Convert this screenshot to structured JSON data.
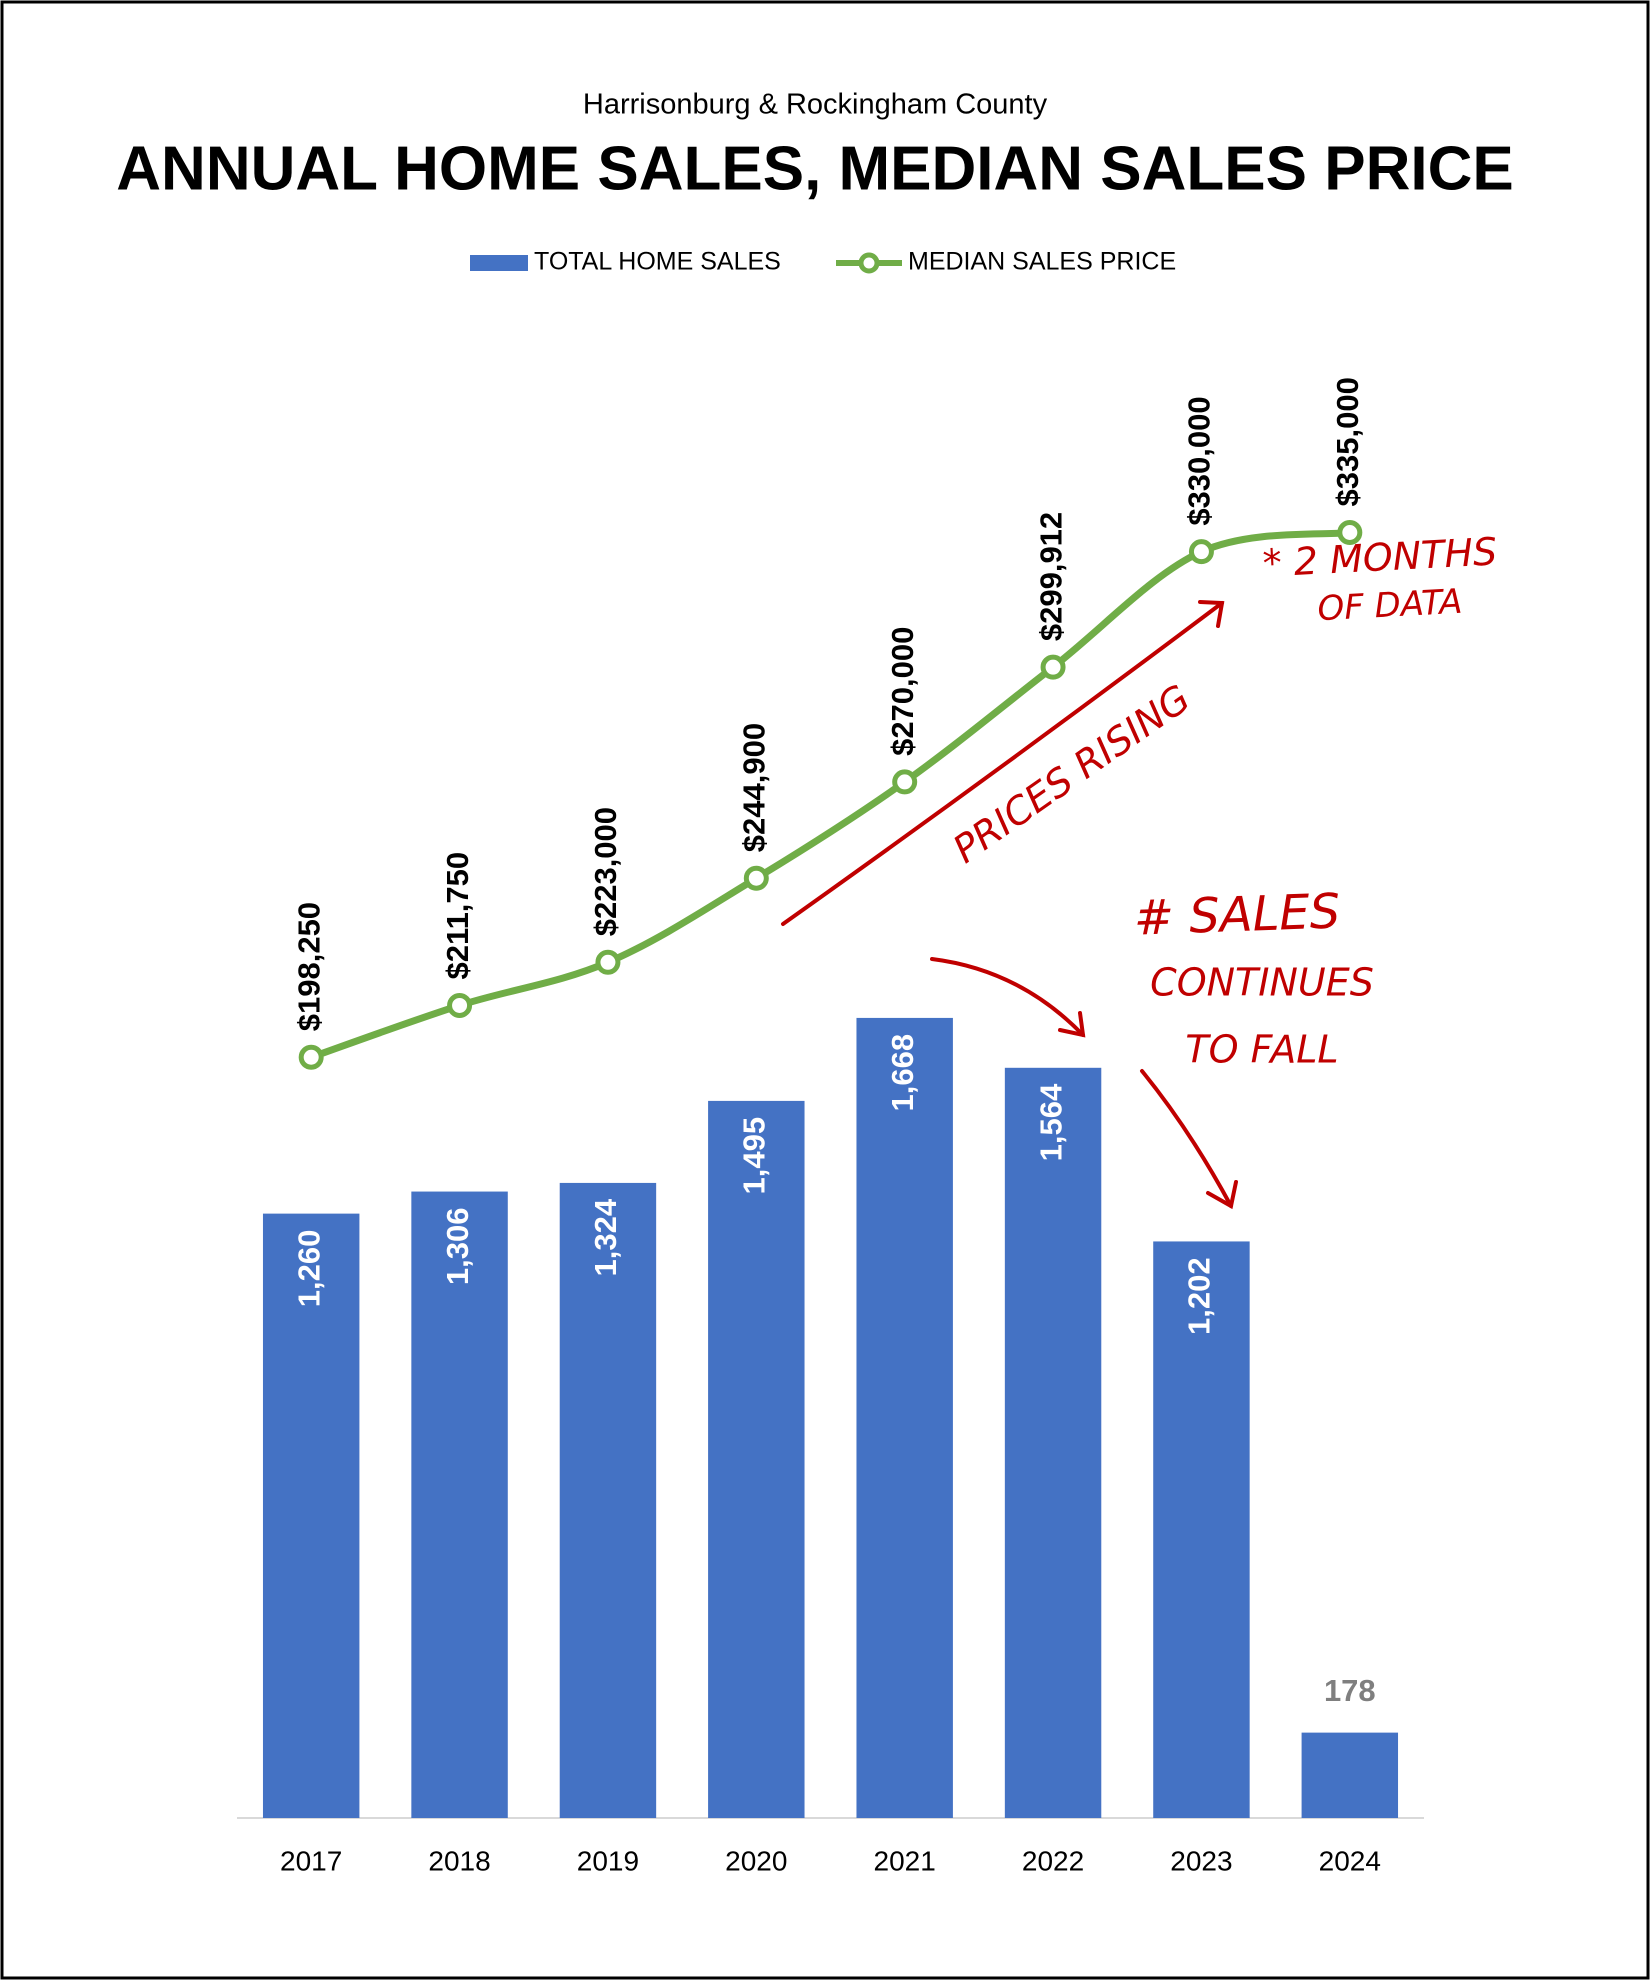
{
  "chart_data": {
    "type": "bar-line",
    "subtitle": "Harrisonburg & Rockingham County",
    "title": "ANNUAL HOME SALES, MEDIAN SALES PRICE",
    "categories": [
      "2017",
      "2018",
      "2019",
      "2020",
      "2021",
      "2022",
      "2023",
      "2024"
    ],
    "series": [
      {
        "name": "TOTAL HOME SALES",
        "type": "bar",
        "color": "#4472c4",
        "values": [
          1260,
          1306,
          1324,
          1495,
          1668,
          1564,
          1202,
          178
        ],
        "value_labels": [
          "1,260",
          "1,306",
          "1,324",
          "1,495",
          "1,668",
          "1,564",
          "1,202",
          "178"
        ]
      },
      {
        "name": "MEDIAN SALES PRICE",
        "type": "line",
        "axis": "y2",
        "color": "#70ad47",
        "values": [
          198250,
          211750,
          223000,
          244900,
          270000,
          299912,
          330000,
          335000
        ],
        "value_labels": [
          "$198,250",
          "$211,750",
          "$223,000",
          "$244,900",
          "$270,000",
          "$299,912",
          "$330,000",
          "$335,000"
        ]
      }
    ],
    "ylim": [
      0,
      3000
    ],
    "y2lim": [
      0,
      375000
    ],
    "annotations": [
      "PRICES RISING",
      "# SALES",
      "CONTINUES",
      "TO FALL",
      "* 2 MONTHS",
      "OF DATA"
    ],
    "annotation_color": "#c00000",
    "legend": "top"
  }
}
